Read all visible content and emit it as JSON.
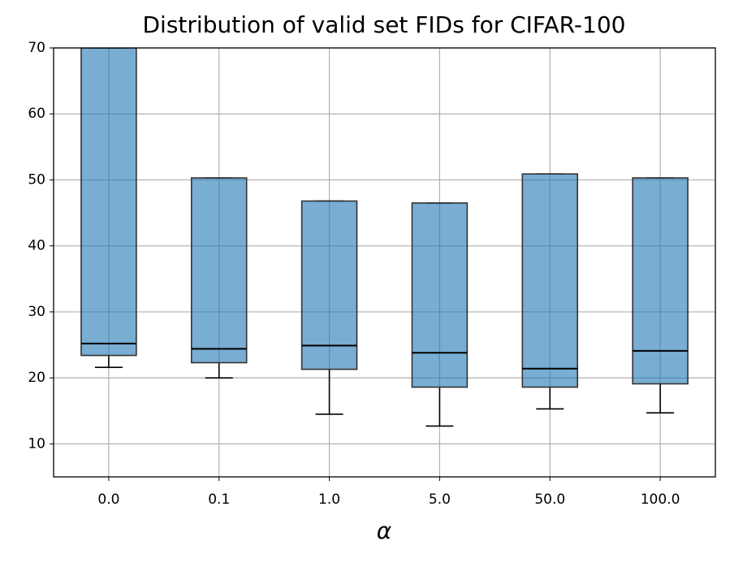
{
  "chart_data": {
    "type": "box",
    "title": "Distribution of valid set FIDs for CIFAR-100",
    "x_label": "α",
    "categories": [
      "0.0",
      "0.1",
      "1.0",
      "5.0",
      "50.0",
      "100.0"
    ],
    "low": [
      21.6,
      20.0,
      14.5,
      12.7,
      15.3,
      14.7
    ],
    "q1": [
      23.4,
      22.3,
      21.3,
      18.6,
      18.6,
      19.1
    ],
    "median": [
      25.2,
      24.4,
      24.9,
      23.8,
      21.4,
      24.1
    ],
    "q3": [
      70,
      50.3,
      46.8,
      46.5,
      50.9,
      50.3
    ],
    "high": [
      70,
      50.3,
      46.8,
      46.5,
      50.9,
      50.3
    ],
    "color": "#1f77b4",
    "ylim": [
      5,
      70
    ],
    "yticks": [
      10,
      20,
      30,
      40,
      50,
      60,
      70
    ],
    "grid": true
  }
}
